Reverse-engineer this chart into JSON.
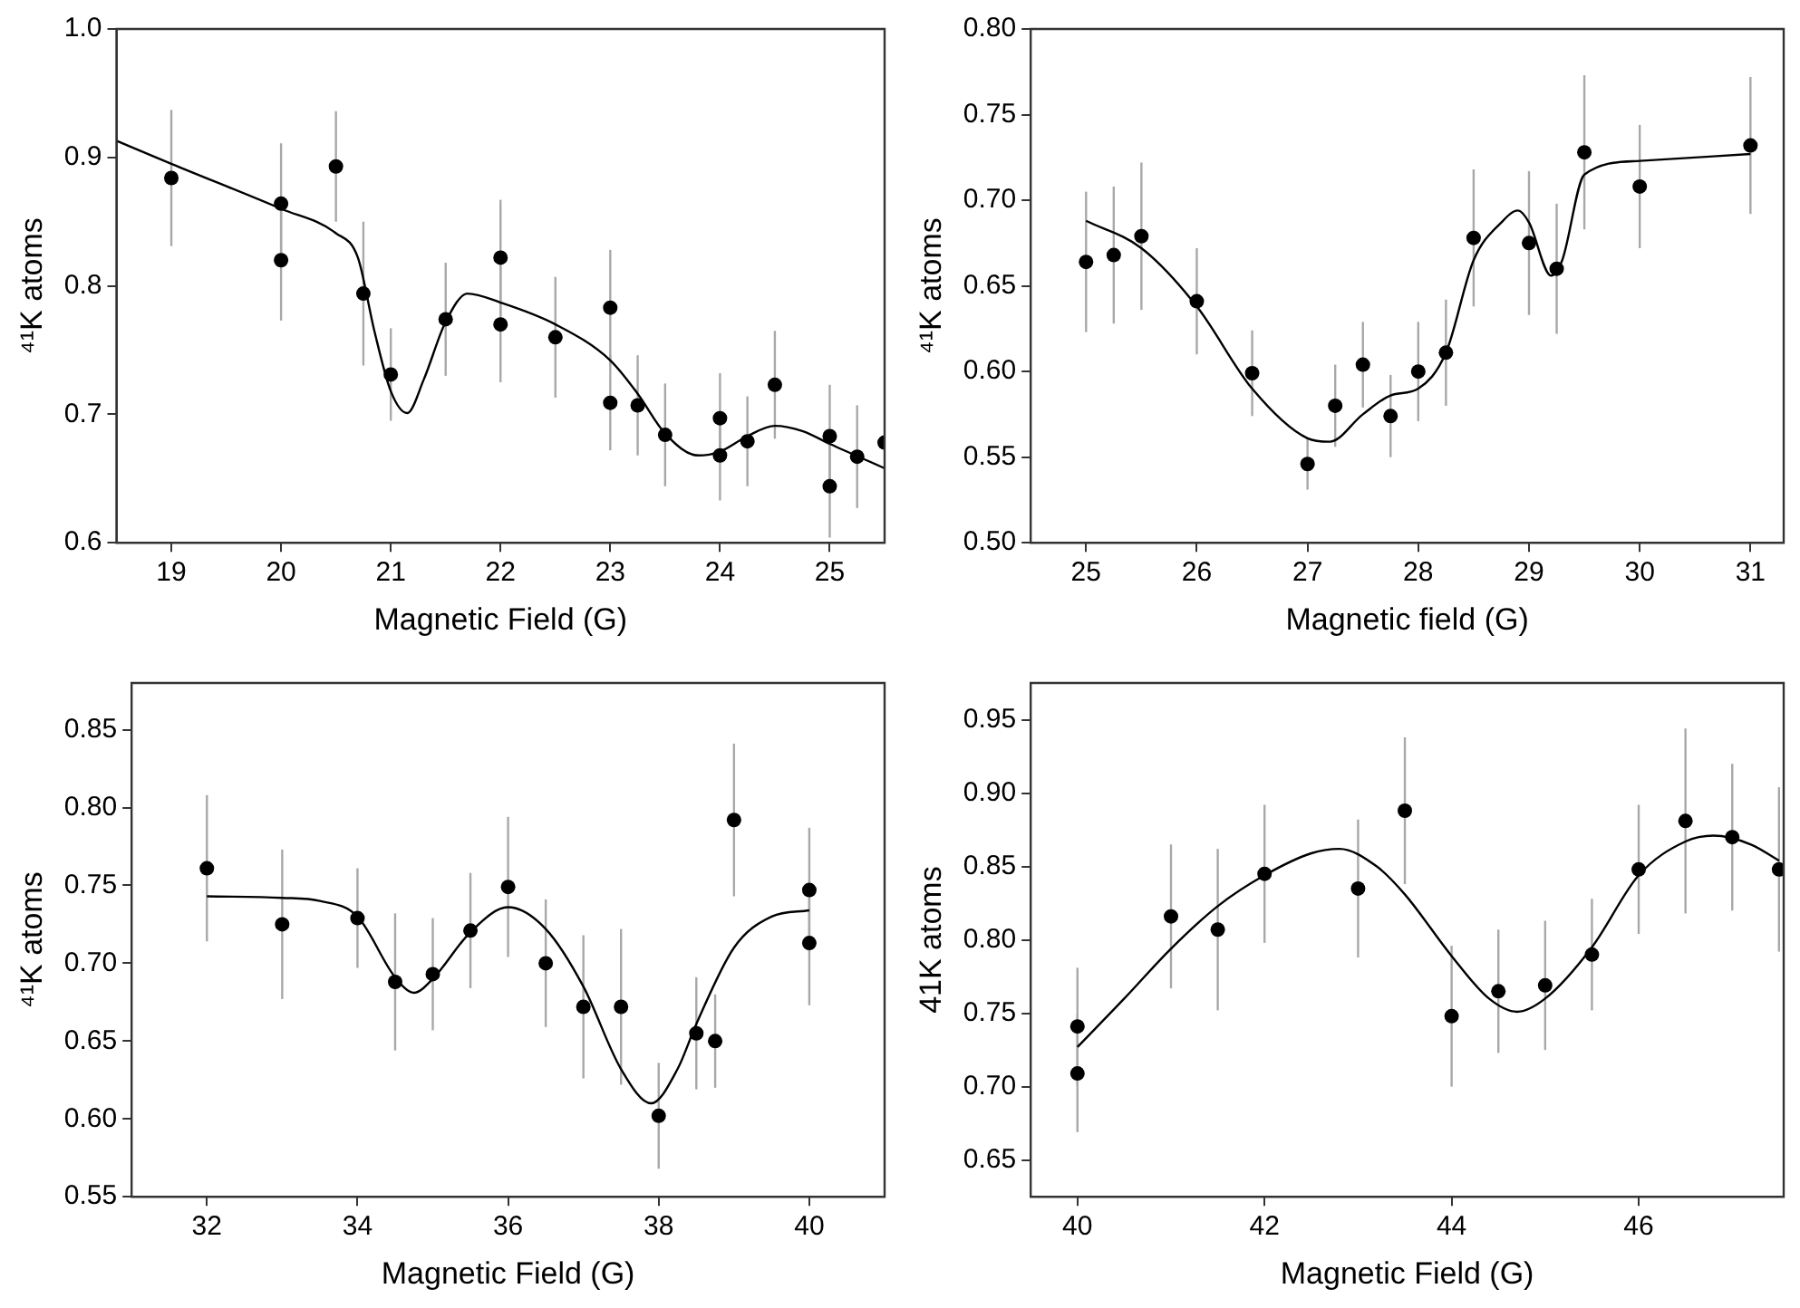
{
  "chart_data": [
    {
      "type": "scatter",
      "xlabel": "Magnetic Field (G)",
      "ylabel": "⁴¹K atoms",
      "xlim": [
        18.5,
        25.5
      ],
      "xticks": [
        19,
        20,
        21,
        22,
        23,
        24,
        25
      ],
      "ylim": [
        0.6,
        1.0
      ],
      "yticks": [
        0.6,
        0.7,
        0.8,
        0.9,
        {
          "value": 1.0,
          "label": "1.0"
        }
      ],
      "grid": false,
      "legend": false,
      "series": [
        {
          "type": "scatter",
          "marker": "circle",
          "color": "#000000",
          "x": [
            19,
            20,
            20,
            20.5,
            20.75,
            21,
            21.5,
            22,
            22,
            22.5,
            23,
            23,
            23.25,
            23.5,
            24,
            24,
            24.25,
            24.5,
            25,
            25,
            25.25,
            25.5
          ],
          "values": [
            0.884,
            0.864,
            0.82,
            0.893,
            0.794,
            0.731,
            0.774,
            0.822,
            0.77,
            0.76,
            0.783,
            0.709,
            0.707,
            0.684,
            0.697,
            0.668,
            0.679,
            0.723,
            0.683,
            0.644,
            0.667,
            0.678
          ],
          "errors": [
            0.053,
            0.047,
            0.047,
            0.043,
            0.056,
            0.036,
            0.044,
            0.045,
            0.045,
            0.047,
            0.045,
            0.037,
            0.039,
            0.04,
            0.035,
            0.035,
            0.035,
            0.042,
            0.04,
            0.04,
            0.04,
            null
          ]
        },
        {
          "type": "line",
          "marker": "none",
          "color": "#000000",
          "x": [
            18.5,
            19,
            20,
            20.5,
            20.7,
            20.85,
            21,
            21.15,
            21.3,
            21.5,
            21.7,
            22,
            22.5,
            23,
            23.25,
            23.5,
            23.8,
            24,
            24.25,
            24.5,
            24.75,
            25,
            25.5
          ],
          "values": [
            0.913,
            0.895,
            0.86,
            0.841,
            0.822,
            0.765,
            0.718,
            0.701,
            0.727,
            0.772,
            0.794,
            0.787,
            0.77,
            0.742,
            0.716,
            0.685,
            0.668,
            0.671,
            0.683,
            0.691,
            0.687,
            0.677,
            0.658
          ]
        }
      ]
    },
    {
      "type": "scatter",
      "xlabel": "Magnetic field (G)",
      "ylabel": "⁴¹K atoms",
      "xlim": [
        24.5,
        31.3
      ],
      "xticks": [
        25,
        26,
        27,
        28,
        29,
        30,
        31
      ],
      "ylim": [
        0.5,
        0.8
      ],
      "yticks": [
        {
          "value": 0.5,
          "label": "0.50"
        },
        0.55,
        {
          "value": 0.6,
          "label": "0.60"
        },
        0.65,
        {
          "value": 0.7,
          "label": "0.70"
        },
        0.75,
        {
          "value": 0.8,
          "label": "0.80"
        }
      ],
      "grid": false,
      "legend": false,
      "series": [
        {
          "type": "scatter",
          "marker": "circle",
          "color": "#000000",
          "x": [
            25,
            25.25,
            25.5,
            26,
            26.5,
            27,
            27.25,
            27.5,
            27.75,
            28,
            28.25,
            28.5,
            29,
            29.25,
            29.5,
            30,
            31
          ],
          "values": [
            0.664,
            0.668,
            0.679,
            0.641,
            0.599,
            0.546,
            0.58,
            0.604,
            0.574,
            0.6,
            0.611,
            0.678,
            0.675,
            0.66,
            0.728,
            0.708,
            0.732
          ],
          "errors": [
            0.041,
            0.04,
            0.043,
            0.031,
            0.025,
            0.015,
            0.024,
            0.025,
            0.024,
            0.029,
            0.031,
            0.04,
            0.042,
            0.038,
            0.045,
            0.036,
            0.04
          ]
        },
        {
          "type": "line",
          "marker": "none",
          "color": "#000000",
          "x": [
            25,
            25.5,
            26,
            26.5,
            27,
            27.2,
            27.5,
            27.75,
            28,
            28.25,
            28.5,
            28.75,
            28.9,
            29,
            29.2,
            29.3,
            29.5,
            30,
            31
          ],
          "values": [
            0.688,
            0.672,
            0.638,
            0.59,
            0.561,
            0.559,
            0.575,
            0.586,
            0.59,
            0.611,
            0.665,
            0.687,
            0.694,
            0.687,
            0.656,
            0.665,
            0.715,
            0.723,
            0.727
          ]
        }
      ]
    },
    {
      "type": "scatter",
      "xlabel": "Magnetic Field (G)",
      "ylabel": "⁴¹K atoms",
      "xlim": [
        31,
        41
      ],
      "xticks": [
        32,
        34,
        36,
        38,
        40
      ],
      "ylim": [
        0.55,
        0.88
      ],
      "yticks": [
        0.55,
        {
          "value": 0.6,
          "label": "0.60"
        },
        0.65,
        {
          "value": 0.7,
          "label": "0.70"
        },
        0.75,
        {
          "value": 0.8,
          "label": "0.80"
        },
        0.85
      ],
      "grid": false,
      "legend": false,
      "series": [
        {
          "type": "scatter",
          "marker": "circle",
          "color": "#000000",
          "x": [
            32,
            33,
            34,
            34.5,
            35,
            35.5,
            36,
            36.5,
            37,
            37.5,
            38,
            38.5,
            38.75,
            39,
            40,
            40
          ],
          "values": [
            0.761,
            0.725,
            0.729,
            0.688,
            0.693,
            0.721,
            0.749,
            0.7,
            0.672,
            0.672,
            0.602,
            0.655,
            0.65,
            0.792,
            0.747,
            0.713
          ],
          "errors": [
            0.047,
            0.048,
            0.032,
            0.044,
            0.036,
            0.037,
            0.045,
            0.041,
            0.046,
            0.05,
            0.034,
            0.036,
            0.03,
            0.049,
            0.04,
            0.04
          ]
        },
        {
          "type": "line",
          "marker": "none",
          "color": "#000000",
          "x": [
            32,
            33,
            33.5,
            34,
            34.5,
            34.75,
            35,
            35.5,
            36,
            36.5,
            37,
            37.5,
            37.9,
            38.25,
            38.5,
            39,
            39.5,
            40
          ],
          "values": [
            0.743,
            0.742,
            0.74,
            0.73,
            0.691,
            0.681,
            0.69,
            0.72,
            0.736,
            0.722,
            0.685,
            0.632,
            0.61,
            0.632,
            0.661,
            0.71,
            0.73,
            0.734
          ]
        }
      ]
    },
    {
      "type": "scatter",
      "xlabel": "Magnetic Field (G)",
      "ylabel": "41K atoms",
      "xlim": [
        39.5,
        47.55
      ],
      "xticks": [
        40,
        42,
        44,
        46
      ],
      "ylim": [
        0.625,
        0.975
      ],
      "yticks": [
        0.65,
        {
          "value": 0.7,
          "label": "0.70"
        },
        0.75,
        {
          "value": 0.8,
          "label": "0.80"
        },
        0.85,
        {
          "value": 0.9,
          "label": "0.90"
        },
        0.95
      ],
      "grid": false,
      "legend": false,
      "series": [
        {
          "type": "scatter",
          "marker": "circle",
          "color": "#000000",
          "x": [
            40,
            40,
            41,
            41.5,
            42,
            43,
            43.5,
            44,
            44.5,
            45,
            45.5,
            46,
            46.5,
            47,
            47.5
          ],
          "values": [
            0.741,
            0.709,
            0.816,
            0.807,
            0.845,
            0.835,
            0.888,
            0.748,
            0.765,
            0.769,
            0.79,
            0.848,
            0.881,
            0.87,
            0.848
          ],
          "errors": [
            0.04,
            0.04,
            0.049,
            0.055,
            0.047,
            0.047,
            0.05,
            0.048,
            0.042,
            0.044,
            0.038,
            0.044,
            0.063,
            0.05,
            0.056
          ]
        },
        {
          "type": "line",
          "marker": "none",
          "color": "#000000",
          "x": [
            40,
            40.5,
            41,
            41.5,
            42,
            42.5,
            42.8,
            43.2,
            43.5,
            44,
            44.4,
            44.7,
            45,
            45.5,
            46,
            46.5,
            46.8,
            47.2,
            47.5
          ],
          "values": [
            0.727,
            0.76,
            0.794,
            0.823,
            0.844,
            0.859,
            0.862,
            0.85,
            0.831,
            0.789,
            0.76,
            0.751,
            0.76,
            0.795,
            0.844,
            0.867,
            0.871,
            0.865,
            0.854
          ]
        }
      ]
    }
  ]
}
